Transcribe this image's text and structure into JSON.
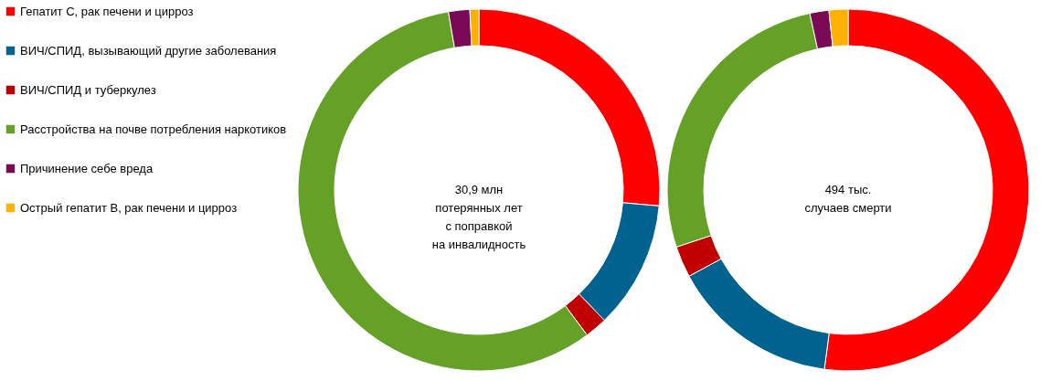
{
  "chart_data": [
    {
      "type": "donut",
      "categories": [
        "Гепатит С, рак печени и цирроз",
        "ВИЧ/СПИД, вызывающий другие заболевания",
        "ВИЧ/СПИД и туберкулез",
        "Расстройства на почве потребления наркотиков",
        "Причинение себе вреда",
        "Острый гепатит В, рак печени и цирроз"
      ],
      "values": [
        26.4,
        11.4,
        2.0,
        57.5,
        1.9,
        0.8
      ],
      "colors": [
        "#ff0000",
        "#00628f",
        "#c00000",
        "#65a027",
        "#7b0a56",
        "#ffb000"
      ],
      "annotations": [
        "30,9 млн\nпотерянных лет\nс поправкой\nна инвалидность"
      ],
      "legend": "left"
    },
    {
      "type": "donut",
      "values": [
        52.1,
        15.0,
        2.8,
        26.7,
        1.7,
        1.7
      ],
      "colors": [
        "#ff0000",
        "#00628f",
        "#c00000",
        "#65a027",
        "#7b0a56",
        "#ffb000"
      ],
      "annotations": [
        "494 тыс.\nслучаев смерти"
      ]
    }
  ]
}
